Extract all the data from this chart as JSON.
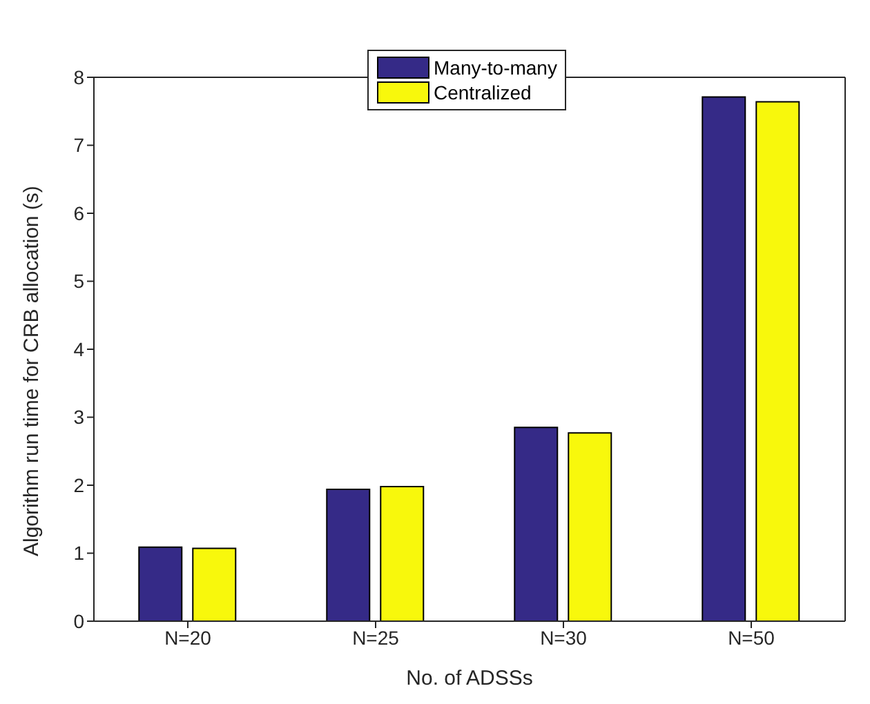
{
  "chart_data": {
    "type": "bar",
    "xlabel": "No. of ADSSs",
    "ylabel": "Algorithm run time for CRB allocation (s)",
    "categories": [
      "N=20",
      "N=25",
      "N=30",
      "N=50"
    ],
    "series": [
      {
        "name": "Many-to-many",
        "color": "#352a87",
        "values": [
          1.09,
          1.94,
          2.85,
          7.71
        ]
      },
      {
        "name": "Centralized",
        "color": "#f8f80c",
        "values": [
          1.07,
          1.98,
          2.77,
          7.64
        ]
      }
    ],
    "ylim": [
      0,
      8
    ],
    "yticks": [
      0,
      1,
      2,
      3,
      4,
      5,
      6,
      7,
      8
    ],
    "grid": false,
    "legend": "top"
  }
}
